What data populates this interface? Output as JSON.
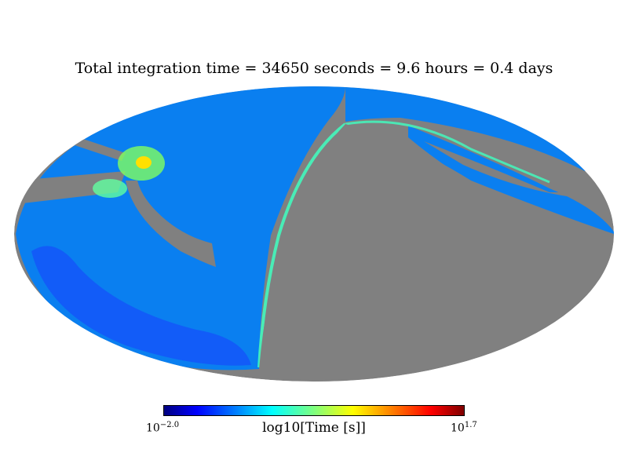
{
  "title": "Total integration time = 34650 seconds = 9.6 hours = 0.4 days",
  "colorbar": {
    "label": "log10[Time [s]]",
    "min_base": "10",
    "min_exp": "−2.0",
    "max_base": "10",
    "max_exp": "1.7",
    "colormap": "jet"
  },
  "map": {
    "projection": "mollweide",
    "masked_color": "#808080",
    "background_color": "#ffffff"
  }
}
